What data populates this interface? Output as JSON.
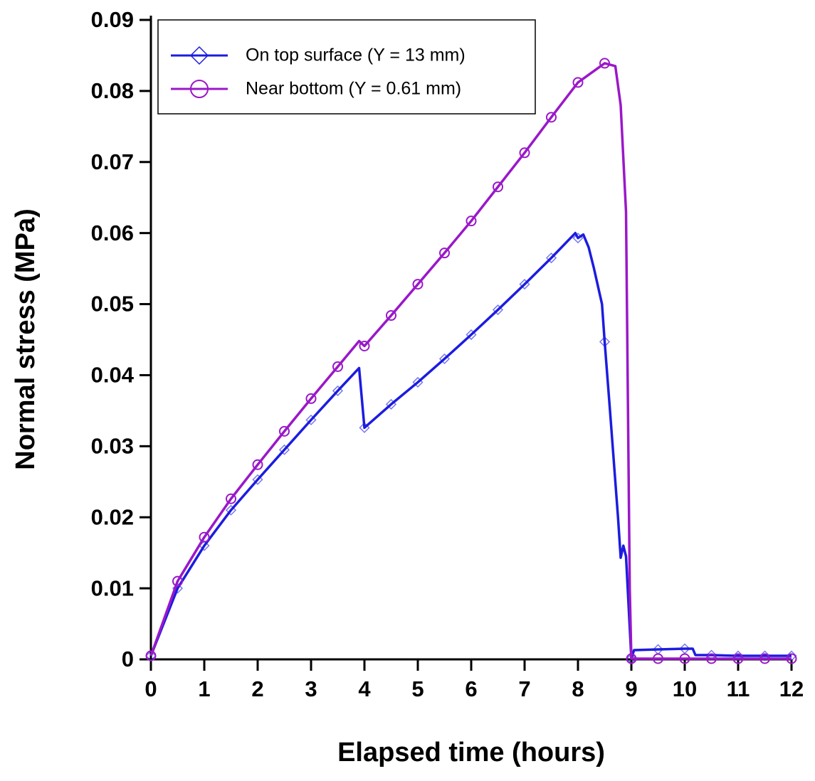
{
  "chart_data": {
    "type": "line",
    "x_label": "Elapsed time (hours)",
    "y_label": "Normal stress (MPa)",
    "xlim": [
      0,
      12
    ],
    "xticks": [
      0,
      1,
      2,
      3,
      4,
      5,
      6,
      7,
      8,
      9,
      10,
      11,
      12
    ],
    "ylim": [
      0,
      0.09
    ],
    "yticks": [
      0,
      0.01,
      0.02,
      0.03,
      0.04,
      0.05,
      0.06,
      0.07,
      0.08,
      0.09
    ],
    "legend": "top-left",
    "series": [
      {
        "name": "On top surface (Y = 13 mm)",
        "color": "#1c1ce0",
        "marker": "diamond",
        "x": [
          0,
          0.5,
          1,
          1.5,
          2,
          2.5,
          3,
          3.5,
          3.9,
          4,
          4.5,
          5,
          5.5,
          6,
          6.5,
          7,
          7.5,
          7.95,
          8,
          8.1,
          8.2,
          8.3,
          8.45,
          8.5,
          8.6,
          8.75,
          8.8,
          8.85,
          8.9,
          9,
          9.05,
          9.5,
          10,
          10.15,
          10.2,
          10.5,
          11,
          11.5,
          12
        ],
        "values": [
          0.0005,
          0.01,
          0.016,
          0.021,
          0.0253,
          0.0295,
          0.0337,
          0.0378,
          0.041,
          0.0326,
          0.0359,
          0.039,
          0.0423,
          0.0457,
          0.0492,
          0.0528,
          0.0565,
          0.06,
          0.0593,
          0.0598,
          0.058,
          0.055,
          0.05,
          0.0447,
          0.035,
          0.02,
          0.0143,
          0.016,
          0.0145,
          0.0001,
          0.0013,
          0.0014,
          0.0015,
          0.0015,
          0.0006,
          0.0006,
          0.0005,
          0.0005,
          0.0005
        ]
      },
      {
        "name": "Near bottom (Y = 0.61 mm)",
        "color": "#9a18c8",
        "marker": "circle",
        "x": [
          0,
          0.5,
          1,
          1.5,
          2,
          2.5,
          3,
          3.5,
          3.9,
          4,
          4.5,
          5,
          5.5,
          6,
          6.5,
          7,
          7.5,
          8,
          8.5,
          8.7,
          8.8,
          8.9,
          8.97,
          9,
          9.5,
          10,
          10.5,
          11,
          11.5,
          12
        ],
        "values": [
          0.0005,
          0.011,
          0.0172,
          0.0226,
          0.0274,
          0.0321,
          0.0367,
          0.0412,
          0.0448,
          0.0441,
          0.0484,
          0.0528,
          0.0572,
          0.0617,
          0.0665,
          0.0713,
          0.0763,
          0.0812,
          0.0839,
          0.0835,
          0.078,
          0.063,
          0.01,
          0.0001,
          0.0001,
          0.0001,
          0.0001,
          0.0001,
          0.0001,
          0.0001
        ]
      }
    ]
  }
}
